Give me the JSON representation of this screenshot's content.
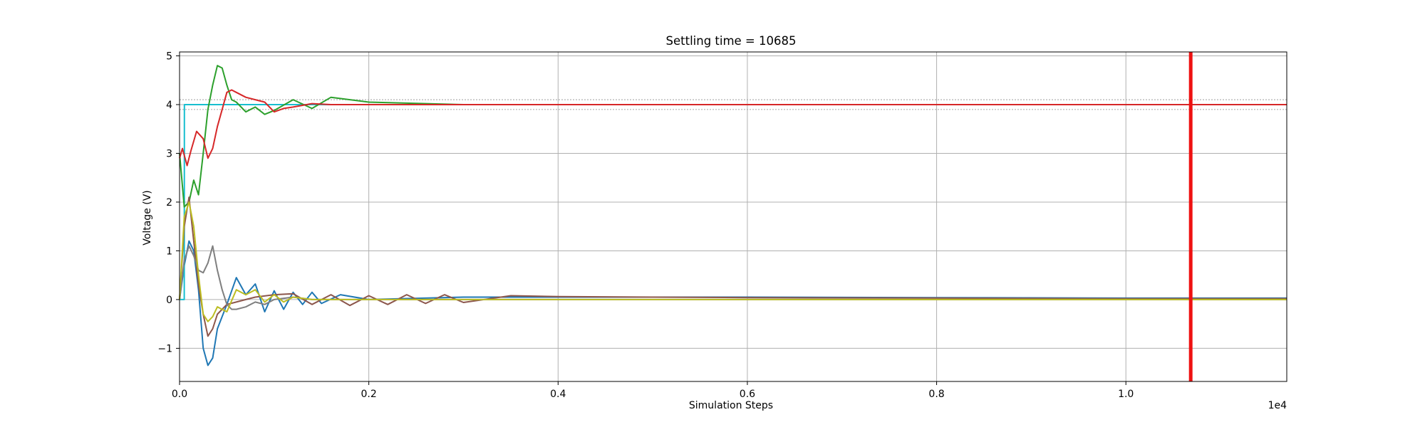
{
  "chart_data": {
    "type": "line",
    "title": "Settling time = 10685",
    "xlabel": "Simulation Steps",
    "ylabel": "Voltage (V)",
    "x_multiplier_label": "1e4",
    "xlim": [
      0,
      11700
    ],
    "ylim": [
      -1.68,
      5.08
    ],
    "grid": true,
    "x_ticks": [
      0,
      2000,
      4000,
      6000,
      8000,
      10000
    ],
    "x_tick_labels": [
      "0.0",
      "0.2",
      "0.4",
      "0.6",
      "0.8",
      "1.0"
    ],
    "y_ticks": [
      -1,
      0,
      1,
      2,
      3,
      4,
      5
    ],
    "y_tick_labels": [
      "−1",
      "0",
      "1",
      "2",
      "3",
      "4",
      "5"
    ],
    "reference_lines": {
      "target_high": 4.0,
      "target_low": 0.0,
      "tolerance_bands": [
        3.9,
        4.1
      ],
      "color": "#b0b0b0"
    },
    "settling_marker": {
      "x": 10685,
      "color": "#ee1111"
    },
    "series": [
      {
        "color": "#1f77b4",
        "x": [
          0,
          50,
          100,
          150,
          200,
          250,
          300,
          350,
          400,
          500,
          600,
          700,
          800,
          900,
          1000,
          1100,
          1200,
          1300,
          1400,
          1500,
          1700,
          2000,
          3000,
          4000,
          6000,
          8000,
          10000,
          11700
        ],
        "y": [
          0,
          0.7,
          1.2,
          1.0,
          0.2,
          -1.0,
          -1.35,
          -1.2,
          -0.6,
          -0.1,
          0.45,
          0.1,
          0.32,
          -0.25,
          0.18,
          -0.2,
          0.15,
          -0.1,
          0.15,
          -0.08,
          0.1,
          0.0,
          0.05,
          0.05,
          0.05,
          0.04,
          0.03,
          0.03
        ]
      },
      {
        "color": "#17becf",
        "x": [
          0,
          50,
          51,
          11700
        ],
        "y": [
          0,
          0,
          4,
          4
        ]
      },
      {
        "color": "#2ca02c",
        "x": [
          0,
          50,
          100,
          150,
          200,
          250,
          300,
          350,
          400,
          450,
          500,
          550,
          600,
          700,
          800,
          900,
          1000,
          1200,
          1400,
          1600,
          2000,
          3000,
          4000,
          6000,
          8000,
          10000,
          11700
        ],
        "y": [
          3.0,
          1.9,
          2.0,
          2.45,
          2.15,
          3.0,
          3.9,
          4.4,
          4.8,
          4.75,
          4.4,
          4.1,
          4.05,
          3.85,
          3.95,
          3.8,
          3.88,
          4.1,
          3.92,
          4.15,
          4.05,
          4.0,
          4.0,
          4.0,
          4.0,
          4.0,
          4.0
        ]
      },
      {
        "color": "#d62728",
        "x": [
          0,
          30,
          80,
          120,
          180,
          250,
          300,
          350,
          400,
          450,
          500,
          550,
          600,
          700,
          800,
          900,
          1000,
          1100,
          1200,
          1400,
          1600,
          2000,
          3000,
          4000,
          6000,
          8000,
          10000,
          11700
        ],
        "y": [
          2.9,
          3.1,
          2.75,
          3.05,
          3.45,
          3.3,
          2.9,
          3.1,
          3.55,
          3.9,
          4.25,
          4.3,
          4.25,
          4.15,
          4.1,
          4.05,
          3.85,
          3.92,
          3.95,
          4.02,
          4.0,
          4.0,
          4.0,
          4.0,
          4.0,
          4.0,
          4.0,
          4.0
        ]
      },
      {
        "color": "#8c564b",
        "x": [
          0,
          50,
          100,
          150,
          200,
          250,
          300,
          350,
          400,
          500,
          600,
          700,
          800,
          1000,
          1200,
          1400,
          1600,
          1800,
          2000,
          2200,
          2400,
          2600,
          2800,
          3000,
          3500,
          4000,
          5000,
          6000,
          8000,
          10000,
          11700
        ],
        "y": [
          0.0,
          1.5,
          2.1,
          1.2,
          0.3,
          -0.3,
          -0.75,
          -0.6,
          -0.3,
          -0.1,
          -0.05,
          0.0,
          0.05,
          0.1,
          0.12,
          -0.1,
          0.1,
          -0.12,
          0.08,
          -0.1,
          0.1,
          -0.08,
          0.1,
          -0.06,
          0.08,
          0.06,
          0.05,
          0.04,
          0.03,
          0.02,
          0.02
        ]
      },
      {
        "color": "#7f7f7f",
        "x": [
          0,
          50,
          100,
          150,
          200,
          250,
          300,
          350,
          400,
          450,
          500,
          550,
          600,
          700,
          800,
          900,
          1000,
          1200,
          1400,
          2000,
          3000,
          4000,
          6000,
          8000,
          10000,
          11700
        ],
        "y": [
          0.0,
          0.8,
          1.1,
          0.9,
          0.6,
          0.55,
          0.75,
          1.1,
          0.6,
          0.2,
          -0.1,
          -0.2,
          -0.2,
          -0.15,
          -0.05,
          -0.1,
          0.0,
          0.05,
          0.0,
          0.0,
          0.0,
          0.0,
          0.0,
          0.0,
          0.0,
          0.0
        ]
      },
      {
        "color": "#bcbd22",
        "x": [
          0,
          50,
          100,
          150,
          200,
          250,
          300,
          350,
          400,
          500,
          600,
          700,
          800,
          900,
          1000,
          1100,
          1200,
          1400,
          2000,
          3000,
          4000,
          6000,
          8000,
          10000,
          11700
        ],
        "y": [
          0.0,
          1.7,
          2.0,
          1.5,
          0.5,
          -0.3,
          -0.45,
          -0.35,
          -0.15,
          -0.25,
          0.2,
          0.1,
          0.2,
          -0.05,
          0.1,
          -0.05,
          0.05,
          0.0,
          0.0,
          0.0,
          0.0,
          0.0,
          0.0,
          0.0,
          0.0
        ]
      }
    ]
  }
}
